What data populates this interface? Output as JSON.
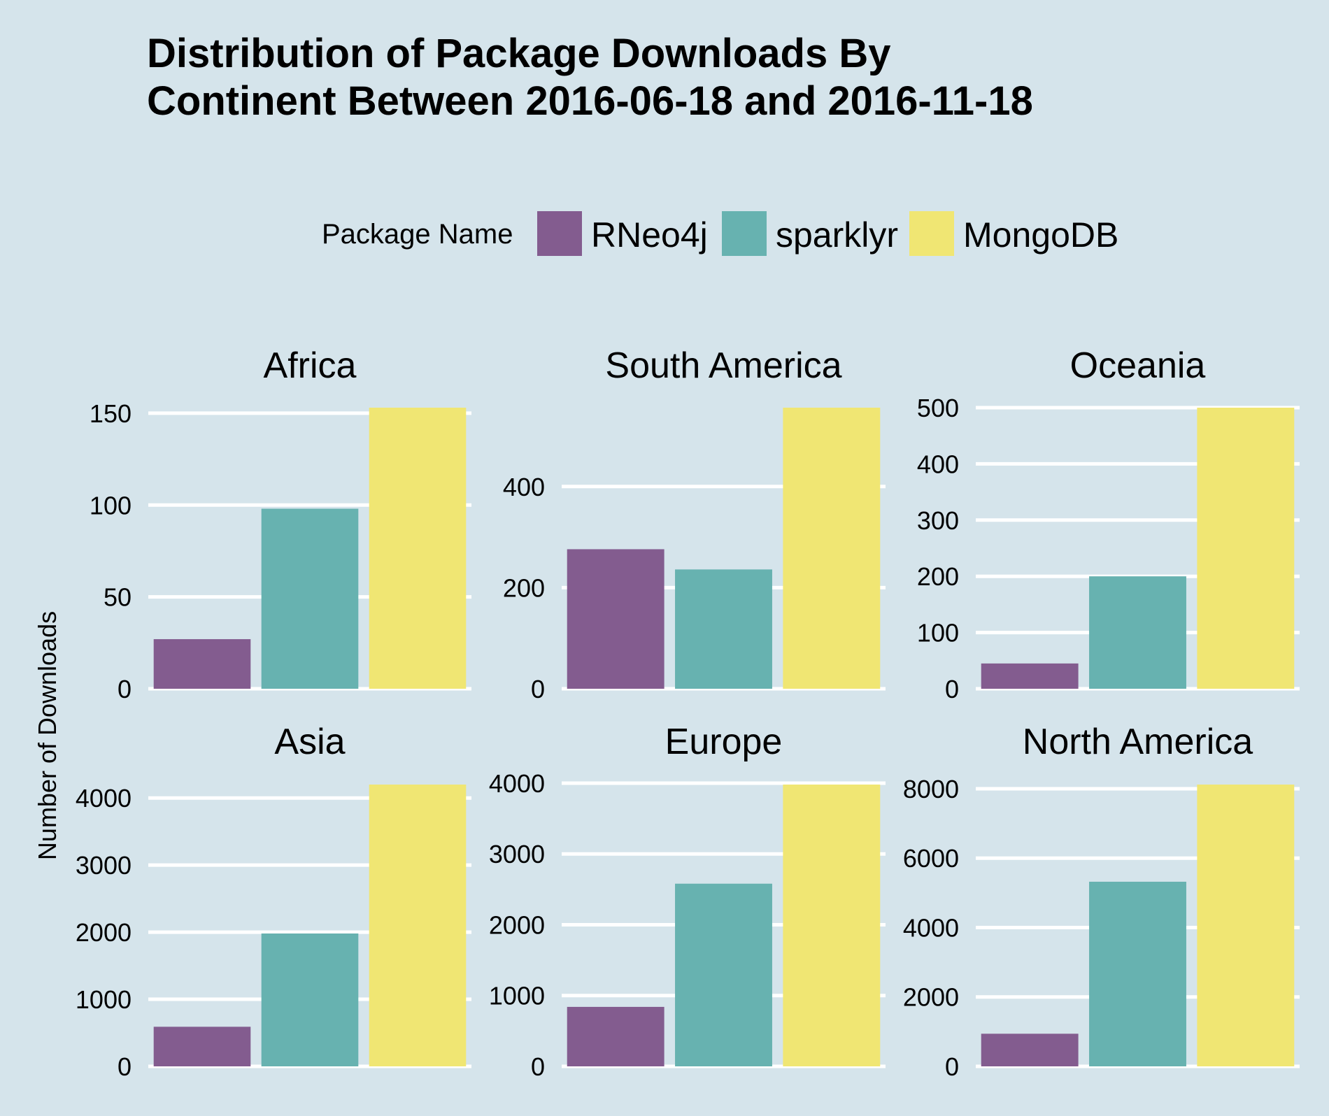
{
  "chart_data": {
    "type": "bar",
    "title": [
      "Distribution of Package Downloads By",
      "Continent Between 2016-06-18 and 2016-11-18"
    ],
    "ylabel": "Number of Downloads",
    "legend": {
      "title": "Package Name",
      "placement": "top"
    },
    "series": [
      {
        "name": "RNeo4j",
        "color": "#835c8f"
      },
      {
        "name": "sparklyr",
        "color": "#67b2b0"
      },
      {
        "name": "MongoDB",
        "color": "#f0e673"
      }
    ],
    "panels": [
      {
        "title": "Africa",
        "values": [
          27,
          98,
          153
        ],
        "yticks": [
          0,
          50,
          100,
          150
        ],
        "ylim": [
          0,
          153
        ]
      },
      {
        "title": "South America",
        "values": [
          276,
          236,
          556
        ],
        "yticks": [
          0,
          200,
          400
        ],
        "ylim": [
          0,
          556
        ]
      },
      {
        "title": "Oceania",
        "values": [
          45,
          200,
          500
        ],
        "yticks": [
          0,
          100,
          200,
          300,
          400,
          500
        ],
        "ylim": [
          0,
          500
        ]
      },
      {
        "title": "Asia",
        "values": [
          590,
          1980,
          4200
        ],
        "yticks": [
          0,
          1000,
          2000,
          3000,
          4000
        ],
        "ylim": [
          0,
          4200
        ]
      },
      {
        "title": "Europe",
        "values": [
          840,
          2580,
          3980
        ],
        "yticks": [
          0,
          1000,
          2000,
          3000,
          4000
        ],
        "ylim": [
          0,
          3980
        ]
      },
      {
        "title": "North America",
        "values": [
          940,
          5320,
          8120
        ],
        "yticks": [
          0,
          2000,
          4000,
          6000,
          8000
        ],
        "ylim": [
          0,
          8120
        ]
      }
    ],
    "grid": "horizontal"
  }
}
